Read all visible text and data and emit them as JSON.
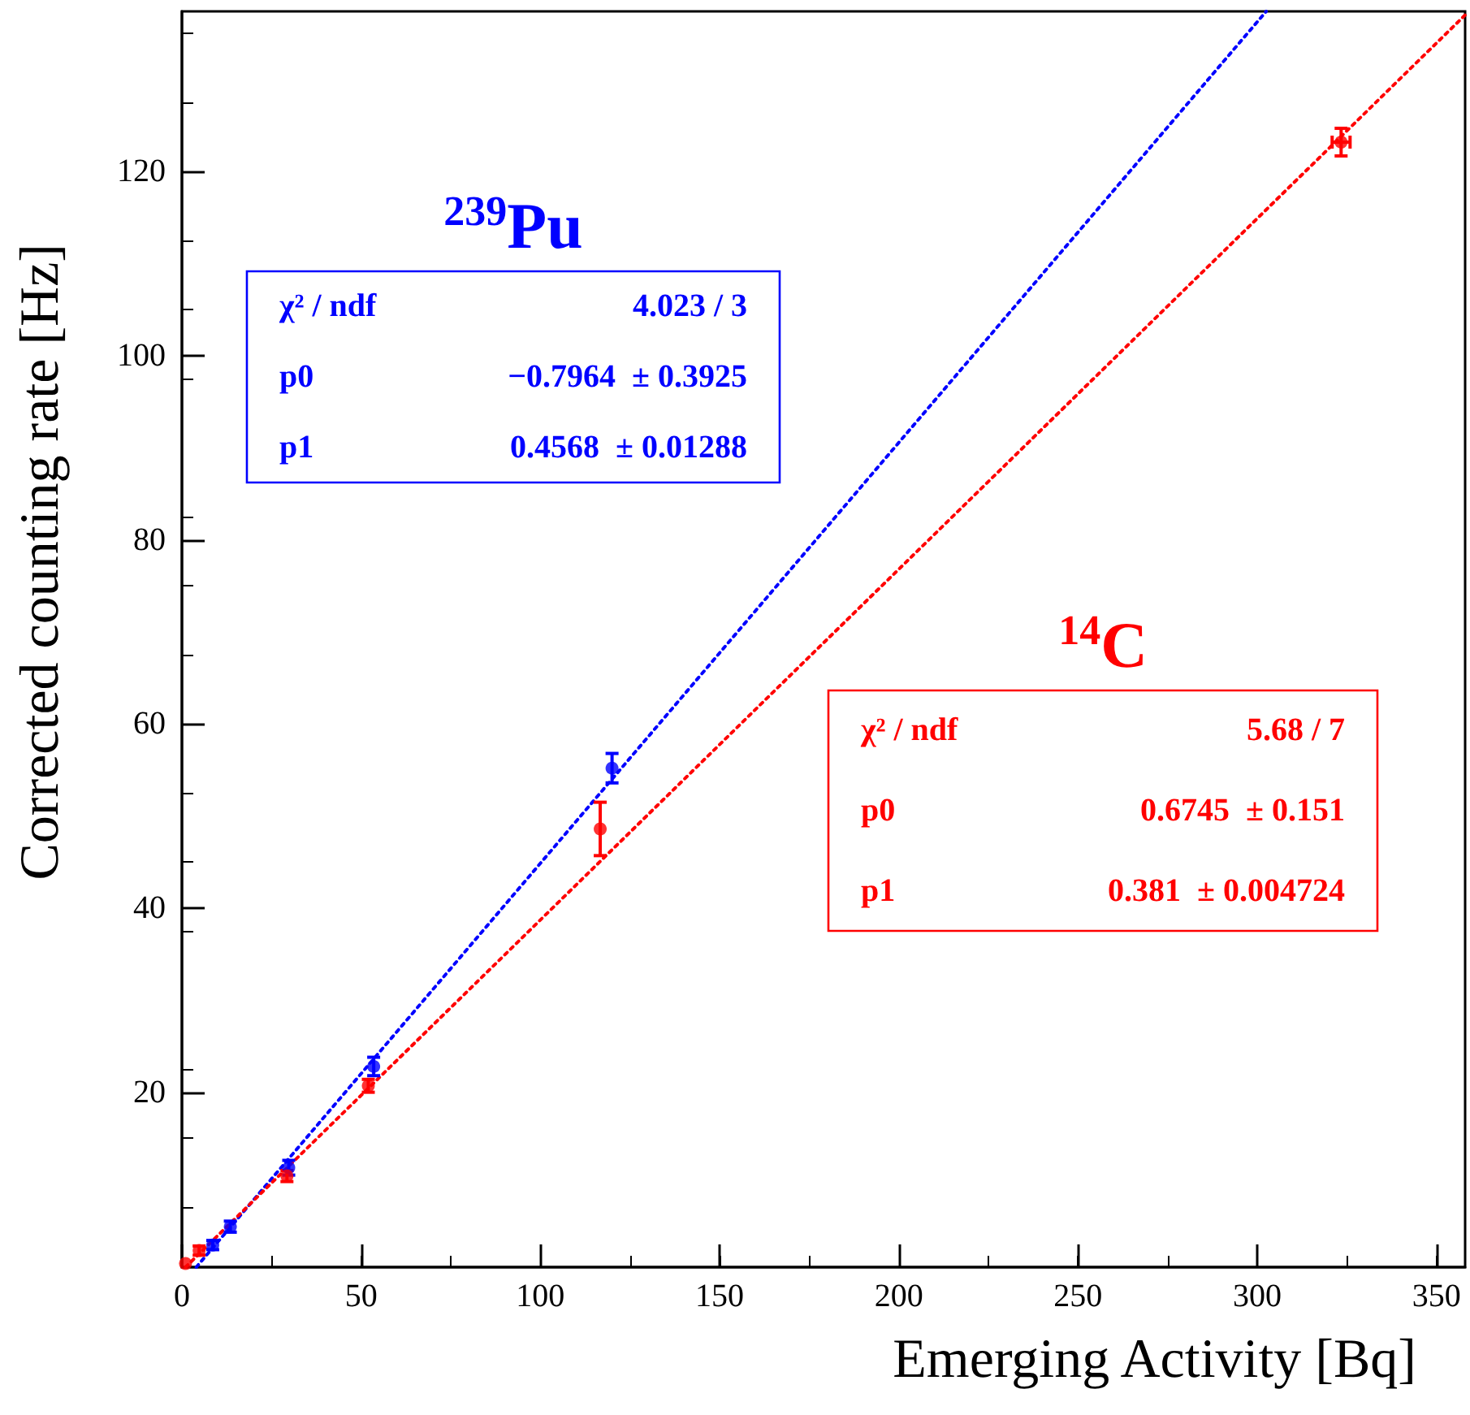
{
  "chart_data": {
    "type": "scatter",
    "xlabel": "Emerging Activity [Bq]",
    "ylabel": "Corrected counting rate [Hz]",
    "xlim": [
      0,
      358
    ],
    "ylim": [
      1,
      137.4
    ],
    "xticks": [
      0,
      50,
      100,
      150,
      200,
      250,
      300,
      350
    ],
    "yticks": [
      20,
      40,
      60,
      80,
      100,
      120
    ],
    "grid": false,
    "legend": false,
    "marker": "circle",
    "series": [
      {
        "name": "$^{239}$Pu",
        "color": "#0000ff",
        "x": [
          8.6,
          13.5,
          29.8,
          53.5,
          120
        ],
        "values": [
          3.4,
          5.4,
          11.8,
          22.8,
          55.2
        ],
        "errors": [
          0.5,
          0.6,
          0.8,
          1.0,
          1.6
        ]
      },
      {
        "name": "$^{14}$C",
        "color": "#ff0000",
        "x": [
          1,
          4.8,
          29.3,
          52,
          116.7,
          323.4
        ],
        "values": [
          1.4,
          2.8,
          10.9,
          20.7,
          48.6,
          123.2
        ],
        "errors": [
          null,
          0.5,
          0.6,
          0.7,
          2.9,
          1.5
        ],
        "xerrors": [
          null,
          null,
          null,
          null,
          null,
          2.5
        ]
      },
      {
        "type": "line",
        "color": "#0000ff",
        "line_style": "dotted",
        "marker": "none",
        "x": [
          4,
          302.5
        ],
        "values": [
          1,
          137.4
        ]
      },
      {
        "type": "line",
        "color": "#ff0000",
        "line_style": "dotted",
        "marker": "none",
        "x": [
          1,
          358
        ],
        "values": [
          1,
          137
        ]
      }
    ],
    "annotations": [
      "χ² / ndf",
      "4.023 / 3",
      "p0",
      "−0.7964  ± 0.3925",
      "p1",
      "0.4568  ± 0.01288",
      "χ² / ndf",
      "5.68 / 7",
      "p0",
      "0.6745  ± 0.151",
      "p1",
      "0.381  ± 0.004724"
    ]
  }
}
